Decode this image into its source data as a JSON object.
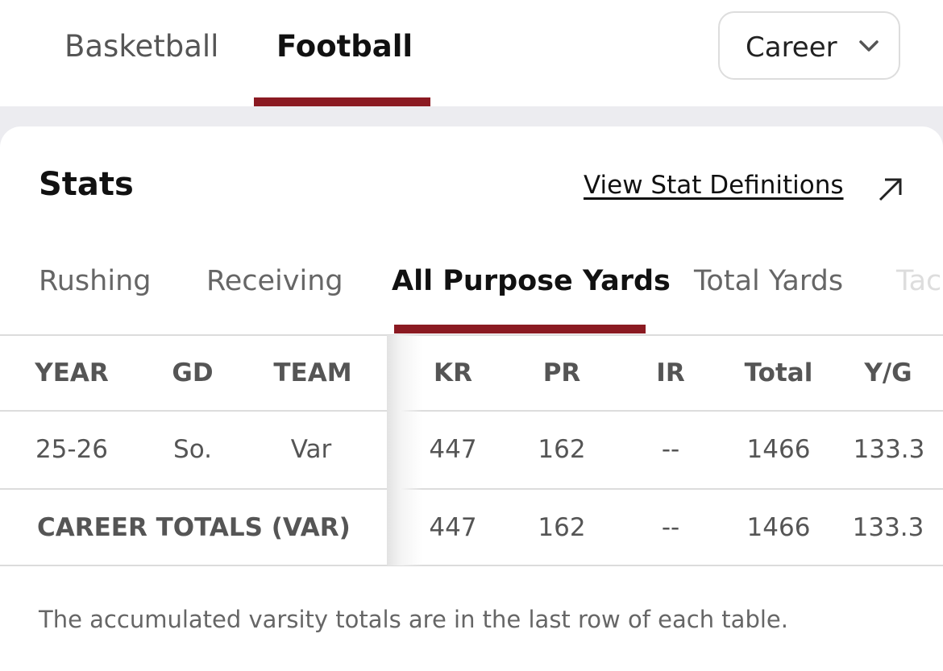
{
  "sport_tabs": {
    "items": [
      "Basketball",
      "Football"
    ],
    "selected": 1
  },
  "dropdown": {
    "label": "Career"
  },
  "stats": {
    "title": "Stats",
    "link": "View Stat Definitions"
  },
  "category_tabs": {
    "items": [
      "Rushing",
      "Receiving",
      "All Purpose Yards",
      "Total Yards",
      "Tac"
    ],
    "selected": 2
  },
  "table": {
    "headers": [
      "YEAR",
      "GD",
      "TEAM",
      "KR",
      "PR",
      "IR",
      "Total",
      "Y/G"
    ],
    "rows": [
      [
        "25-26",
        "So.",
        "Var",
        "447",
        "162",
        "--",
        "1466",
        "133.3"
      ]
    ],
    "totals": {
      "label": "CAREER TOTALS (VAR)",
      "values": [
        "447",
        "162",
        "--",
        "1466",
        "133.3"
      ]
    }
  },
  "footnote": "The accumulated varsity totals are in the last row of each table."
}
